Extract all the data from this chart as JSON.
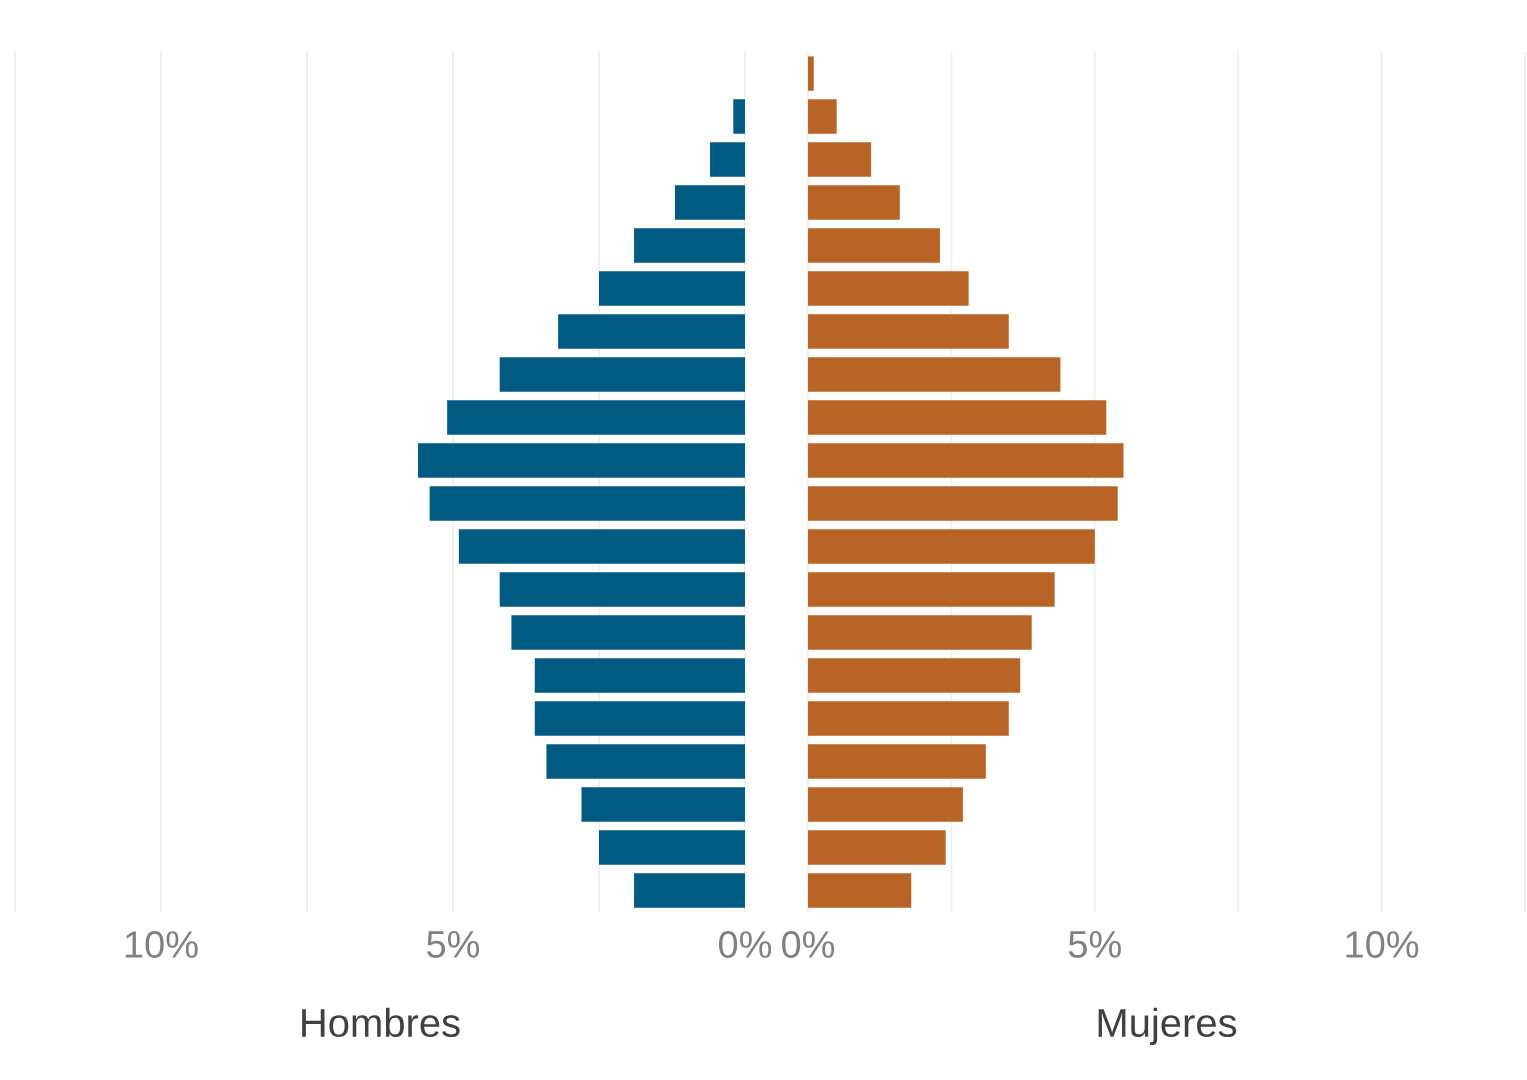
{
  "chart_data": [
    {
      "type": "bar",
      "orientation": "horizontal",
      "xlabel": "Hombres",
      "color": "#005a82",
      "grid": "x",
      "tick_labels": "x",
      "categories": [
        null,
        null,
        null,
        null,
        null,
        null,
        null,
        null,
        null,
        null,
        null,
        null,
        null,
        null,
        null,
        null,
        null,
        null,
        null,
        null
      ],
      "values": [
        null,
        0.2,
        0.6,
        1.2,
        1.9,
        2.5,
        3.2,
        4.2,
        5.1,
        5.6,
        5.4,
        4.9,
        4.2,
        4.0,
        3.6,
        3.6,
        3.4,
        2.8,
        2.5,
        1.9
      ],
      "xlim": [
        12.5,
        0
      ],
      "xticks": [
        {
          "value": 12.5,
          "label": null
        },
        {
          "value": 10,
          "label": "10%"
        },
        {
          "value": 7.5,
          "label": null
        },
        {
          "value": 5,
          "label": "5%"
        },
        {
          "value": 2.5,
          "label": null
        },
        {
          "value": 0,
          "label": "0%"
        }
      ]
    },
    {
      "type": "bar",
      "orientation": "horizontal",
      "xlabel": "Mujeres",
      "color": "#b86426",
      "grid": "x",
      "tick_labels": "x",
      "categories": [
        null,
        null,
        null,
        null,
        null,
        null,
        null,
        null,
        null,
        null,
        null,
        null,
        null,
        null,
        null,
        null,
        null,
        null,
        null,
        null
      ],
      "values": [
        0.1,
        0.5,
        1.1,
        1.6,
        2.3,
        2.8,
        3.5,
        4.4,
        5.2,
        5.5,
        5.4,
        5.0,
        4.3,
        3.9,
        3.7,
        3.5,
        3.1,
        2.7,
        2.4,
        1.8
      ],
      "xlim": [
        0,
        12.5
      ],
      "xticks": [
        {
          "value": 0,
          "label": "0%"
        },
        {
          "value": 2.5,
          "label": null
        },
        {
          "value": 5,
          "label": "5%"
        },
        {
          "value": 7.5,
          "label": null
        },
        {
          "value": 10,
          "label": "10%"
        },
        {
          "value": 12.5,
          "label": null
        }
      ]
    }
  ]
}
